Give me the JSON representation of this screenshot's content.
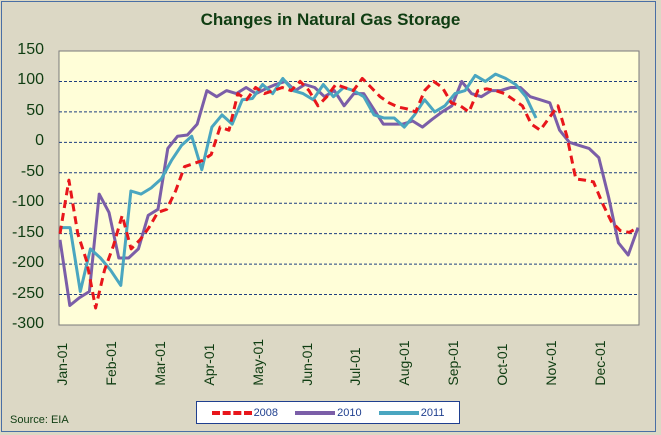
{
  "chart_data": {
    "type": "line",
    "title": "Changes in Natural Gas Storage",
    "xlabel": "",
    "ylabel": "",
    "ylim": [
      -300,
      150
    ],
    "yticks": [
      150,
      100,
      50,
      0,
      -50,
      -100,
      -150,
      -200,
      -250,
      -300
    ],
    "x_tick_labels": [
      "Jan-01",
      "Feb-01",
      "Mar-01",
      "Apr-01",
      "May-01",
      "Jun-01",
      "Jul-01",
      "Aug-01",
      "Sep-01",
      "Oct-01",
      "Nov-01",
      "Dec-01"
    ],
    "grid": "horizontal dashed",
    "legend_position": "bottom",
    "source": "Source: EIA",
    "series": [
      {
        "name": "2008",
        "color": "#e8161b",
        "style": "dashed",
        "values": [
          -150,
          -62,
          -150,
          -195,
          -272,
          -210,
          -170,
          -120,
          -175,
          -160,
          -140,
          -115,
          -110,
          -80,
          -40,
          -35,
          -30,
          -20,
          25,
          20,
          80,
          70,
          90,
          80,
          85,
          90,
          85,
          100,
          85,
          60,
          75,
          95,
          90,
          85,
          105,
          90,
          75,
          65,
          58,
          55,
          50,
          85,
          100,
          90,
          65,
          60,
          50,
          85,
          88,
          85,
          80,
          70,
          60,
          30,
          20,
          40,
          60,
          10,
          -60,
          -62,
          -65,
          -100,
          -130,
          -145,
          -148,
          -140
        ]
      },
      {
        "name": "2010",
        "color": "#7b5ea8",
        "style": "solid",
        "values": [
          -160,
          -268,
          -255,
          -245,
          -85,
          -115,
          -190,
          -190,
          -175,
          -120,
          -110,
          -10,
          10,
          12,
          30,
          85,
          75,
          85,
          80,
          90,
          80,
          88,
          95,
          100,
          85,
          95,
          90,
          75,
          85,
          60,
          80,
          80,
          55,
          30,
          30,
          30,
          35,
          25,
          38,
          50,
          60,
          100,
          80,
          75,
          85,
          85,
          90,
          90,
          75,
          70,
          65,
          20,
          0,
          -5,
          -10,
          -25,
          -90,
          -165,
          -185,
          -140
        ]
      },
      {
        "name": "2011",
        "color": "#4aa6c0",
        "style": "solid",
        "values": [
          -140,
          -140,
          -245,
          -175,
          -190,
          -210,
          -235,
          -80,
          -85,
          -75,
          -60,
          -30,
          -5,
          10,
          -45,
          25,
          45,
          30,
          70,
          72,
          95,
          80,
          105,
          85,
          80,
          70,
          95,
          75,
          90,
          85,
          75,
          45,
          40,
          40,
          25,
          45,
          70,
          50,
          60,
          80,
          85,
          110,
          100,
          112,
          105,
          95,
          75,
          40
        ]
      }
    ]
  },
  "legend": {
    "items": [
      "2008",
      "2010",
      "2011"
    ]
  }
}
